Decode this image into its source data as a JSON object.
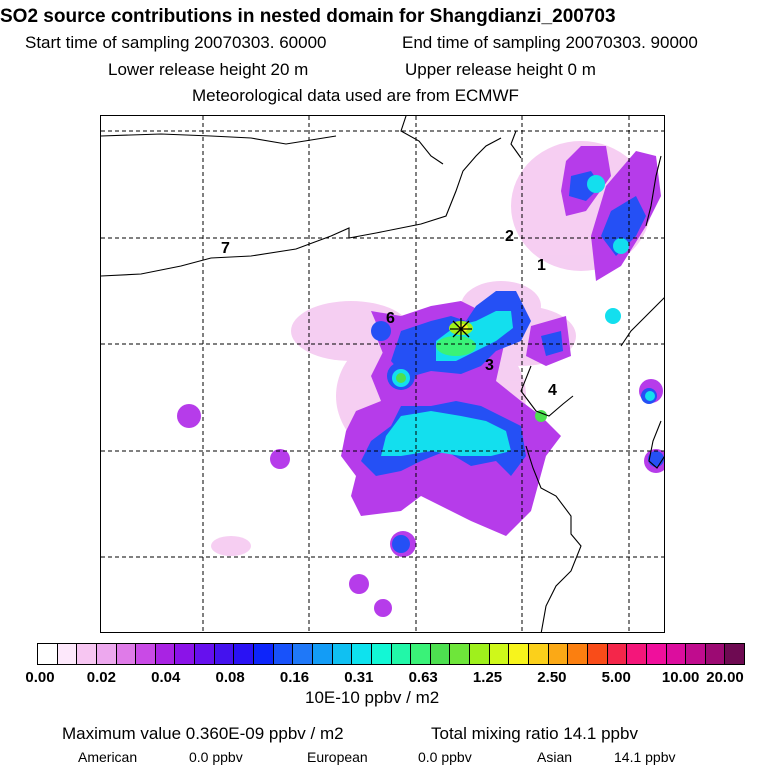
{
  "title": "SO2 source contributions in nested domain for Shangdianzi_200703",
  "header": {
    "start_time": "Start time of sampling 20070303. 60000",
    "end_time": "End time of sampling 20070303. 90000",
    "lower_release": "Lower release height   20 m",
    "upper_release": "Upper release height    0 m",
    "met_data": "Meteorological data used are from ECMWF"
  },
  "map": {
    "region_labels": [
      "1",
      "2",
      "3",
      "4",
      "6",
      "7"
    ],
    "receptor_marker": "star-icon"
  },
  "colorbar": {
    "tick_labels": [
      "0.00",
      "0.02",
      "0.04",
      "0.08",
      "0.16",
      "0.31",
      "0.63",
      "1.25",
      "2.50",
      "5.00",
      "10.00",
      "20.00"
    ],
    "colors": [
      "#ffffff",
      "#fde8fb",
      "#f7c6f2",
      "#eda8ee",
      "#df7be8",
      "#c94ae6",
      "#a923e3",
      "#8b13e8",
      "#6610ee",
      "#4412ee",
      "#2a12f4",
      "#0d25fa",
      "#1852fa",
      "#1f78f8",
      "#139cf6",
      "#10c0f2",
      "#0ee2ee",
      "#13f7d5",
      "#22f7a8",
      "#3af278",
      "#4de050",
      "#6ee63a",
      "#9ff01c",
      "#cff81a",
      "#f7f41c",
      "#fbd01b",
      "#fba916",
      "#fb7f10",
      "#f94c19",
      "#f4264a",
      "#f4167a",
      "#f00f9c",
      "#dc0d9e",
      "#c00c8e",
      "#9c0a73",
      "#6e0a52"
    ],
    "units": "10E-10 ppbv / m2"
  },
  "footer": {
    "max_value": "Maximum value  0.360E-09 ppbv / m2",
    "total_mixing": "Total mixing ratio      14.1 ppbv",
    "american_label": "American",
    "american_value": "0.0 ppbv",
    "european_label": "European",
    "european_value": "0.0 ppbv",
    "asian_label": "Asian",
    "asian_value": "14.1 ppbv"
  }
}
